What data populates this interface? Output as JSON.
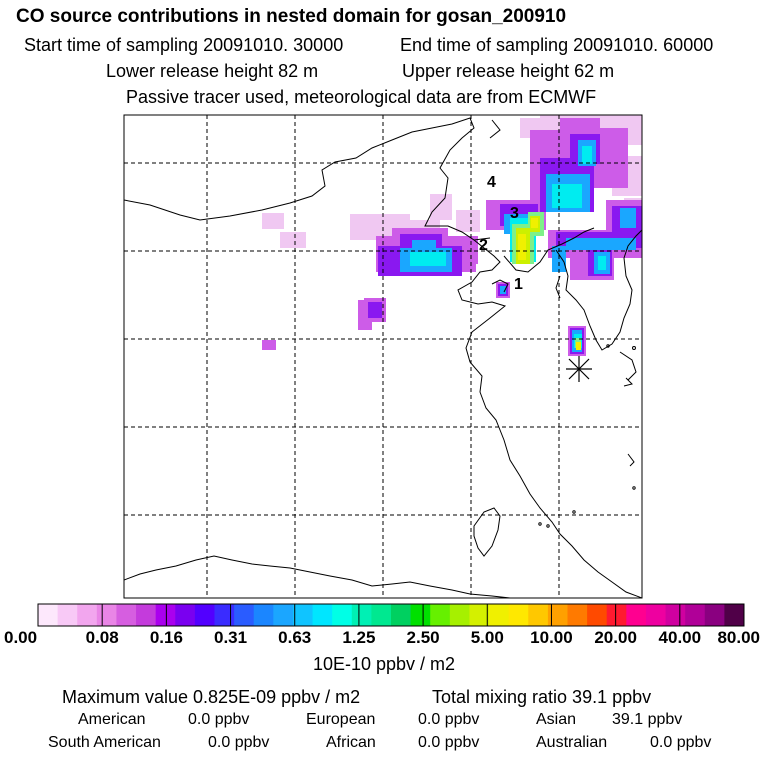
{
  "header": {
    "title": "CO  source contributions in nested domain for gosan_200910",
    "start_label": "Start time of sampling 20091010. 30000",
    "end_label": "End time of sampling 20091010. 60000",
    "lower_label": "Lower release height   82 m",
    "upper_label": "Upper release height   62 m",
    "tracer_note": "Passive tracer used, meteorological data are from ECMWF"
  },
  "map": {
    "site_labels": [
      "1",
      "2",
      "3",
      "4"
    ],
    "receptor_marker": "asterisk"
  },
  "colorbar": {
    "colors": [
      "#fde8fc",
      "#f8c9f6",
      "#f2a6ee",
      "#e985e6",
      "#d65ee0",
      "#c43bdc",
      "#aa00ee",
      "#7a00f0",
      "#5200ff",
      "#3a2cff",
      "#2a5cff",
      "#1b86ff",
      "#1ba6ff",
      "#10c4ff",
      "#00e6ff",
      "#00ffe6",
      "#00f0b4",
      "#00e890",
      "#00d060",
      "#00e000",
      "#66f000",
      "#a6f000",
      "#d4f000",
      "#f0f000",
      "#ffe800",
      "#ffc800",
      "#ffa000",
      "#ff7a00",
      "#ff4a00",
      "#ff1a30",
      "#ff0090",
      "#ee00a0",
      "#d000a0",
      "#b00098",
      "#8a0080",
      "#500048"
    ],
    "tick_labels": [
      "0.00",
      "0.08",
      "0.16",
      "0.31",
      "0.63",
      "1.25",
      "2.50",
      "5.00",
      "10.00",
      "20.00",
      "40.00",
      "80.00"
    ],
    "units": "10E-10 ppbv / m2"
  },
  "stats": {
    "max_label": "Maximum value  0.825E-09 ppbv / m2",
    "total_label": "Total mixing ratio       39.1 ppbv",
    "regions": [
      {
        "name": "American",
        "value": "0.0 ppbv"
      },
      {
        "name": "European",
        "value": "0.0 ppbv"
      },
      {
        "name": "Asian",
        "value": "39.1 ppbv"
      },
      {
        "name": "South American",
        "value": "0.0 ppbv"
      },
      {
        "name": "African",
        "value": "0.0 ppbv"
      },
      {
        "name": "Australian",
        "value": "0.0 ppbv"
      }
    ]
  }
}
